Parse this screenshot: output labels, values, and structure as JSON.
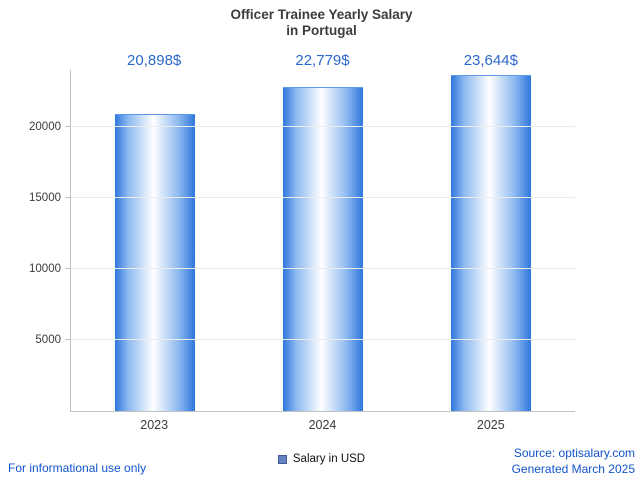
{
  "title": {
    "line1": "Officer Trainee Yearly Salary",
    "line2": "in Portugal"
  },
  "chart_data": {
    "type": "bar",
    "title": "Officer Trainee Yearly Salary in Portugal",
    "categories": [
      "2023",
      "2024",
      "2025"
    ],
    "values": [
      20898,
      22779,
      23644
    ],
    "value_labels": [
      "20,898$",
      "22,779$",
      "23,644$"
    ],
    "xlabel": "",
    "ylabel": "",
    "ylim": [
      0,
      24000
    ],
    "yticks": [
      5000,
      10000,
      15000,
      20000
    ],
    "grid": true,
    "legend_position": "bottom-center",
    "bar_gradient_edge": "#2e76dd",
    "bar_gradient_center": "#ffffff"
  },
  "legend": {
    "label": "Salary in USD",
    "swatch_color": "#6784c2"
  },
  "footer": {
    "left": "For informational use only",
    "source": "Source: optisalary.com",
    "generated": "Generated March 2025"
  },
  "colors": {
    "value_label": "#2b68cc",
    "footer_blue": "#1155cc",
    "axis": "#c2c2c2",
    "title_text": "#3c3c3c"
  }
}
